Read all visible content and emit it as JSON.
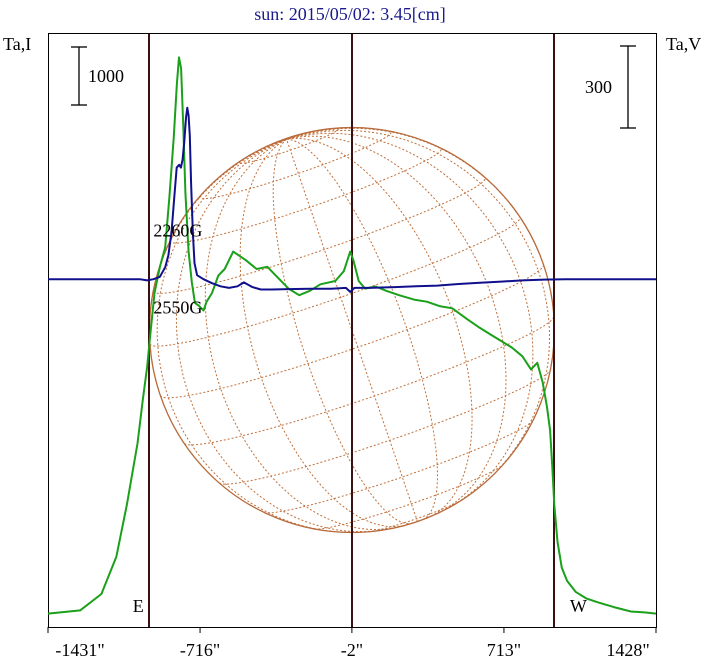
{
  "chart_data": {
    "type": "line",
    "title": "sun: 2015/05/02: 3.45[cm]",
    "left_axis_label": "Ta,I",
    "right_axis_label": "Ta,V",
    "left_scale_bar": {
      "label": "1000",
      "value": 1000
    },
    "right_scale_bar": {
      "label": "300",
      "value": 300
    },
    "x_ticks": [
      {
        "label": "-1431\"",
        "value": -1431
      },
      {
        "label": "-716\"",
        "value": -716
      },
      {
        "label": "-2\"",
        "value": -2
      },
      {
        "label": "713\"",
        "value": 713
      },
      {
        "label": "1428\"",
        "value": 1428
      }
    ],
    "xlim": [
      -1431,
      1428
    ],
    "limb_markers": [
      {
        "label": "E",
        "x": -950
      },
      {
        "label": "W",
        "x": 950
      }
    ],
    "center_x": -2,
    "annotations": [
      {
        "text": "2260G",
        "x": -820,
        "y": 1750
      },
      {
        "text": "2550G",
        "x": -820,
        "y": 1395
      }
    ],
    "series": [
      {
        "name": "I",
        "color": "#1aa01a",
        "ylim": [
          0,
          2650
        ],
        "points": [
          [
            -1431,
            20
          ],
          [
            -1280,
            35
          ],
          [
            -1180,
            110
          ],
          [
            -1110,
            280
          ],
          [
            -1060,
            520
          ],
          [
            -1010,
            800
          ],
          [
            -985,
            1000
          ],
          [
            -965,
            1150
          ],
          [
            -950,
            1300
          ],
          [
            -930,
            1490
          ],
          [
            -905,
            1610
          ],
          [
            -880,
            1700
          ],
          [
            -860,
            1930
          ],
          [
            -840,
            2200
          ],
          [
            -825,
            2450
          ],
          [
            -815,
            2570
          ],
          [
            -805,
            2520
          ],
          [
            -795,
            2250
          ],
          [
            -785,
            1950
          ],
          [
            -770,
            1680
          ],
          [
            -755,
            1540
          ],
          [
            -740,
            1445
          ],
          [
            -720,
            1430
          ],
          [
            -700,
            1410
          ],
          [
            -685,
            1450
          ],
          [
            -660,
            1490
          ],
          [
            -630,
            1570
          ],
          [
            -600,
            1600
          ],
          [
            -560,
            1680
          ],
          [
            -530,
            1660
          ],
          [
            -500,
            1640
          ],
          [
            -450,
            1600
          ],
          [
            -400,
            1610
          ],
          [
            -350,
            1560
          ],
          [
            -300,
            1510
          ],
          [
            -250,
            1480
          ],
          [
            -200,
            1500
          ],
          [
            -150,
            1530
          ],
          [
            -80,
            1545
          ],
          [
            -40,
            1590
          ],
          [
            -10,
            1680
          ],
          [
            5,
            1640
          ],
          [
            30,
            1545
          ],
          [
            60,
            1510
          ],
          [
            110,
            1520
          ],
          [
            160,
            1500
          ],
          [
            220,
            1480
          ],
          [
            290,
            1460
          ],
          [
            350,
            1450
          ],
          [
            410,
            1430
          ],
          [
            470,
            1420
          ],
          [
            540,
            1370
          ],
          [
            600,
            1330
          ],
          [
            650,
            1300
          ],
          [
            700,
            1270
          ],
          [
            750,
            1240
          ],
          [
            800,
            1200
          ],
          [
            840,
            1140
          ],
          [
            870,
            1170
          ],
          [
            895,
            1080
          ],
          [
            915,
            970
          ],
          [
            930,
            860
          ],
          [
            940,
            700
          ],
          [
            950,
            520
          ],
          [
            965,
            350
          ],
          [
            985,
            230
          ],
          [
            1010,
            170
          ],
          [
            1050,
            120
          ],
          [
            1100,
            90
          ],
          [
            1160,
            70
          ],
          [
            1230,
            50
          ],
          [
            1310,
            30
          ],
          [
            1380,
            25
          ],
          [
            1428,
            20
          ]
        ]
      },
      {
        "name": "V",
        "color": "#10108c",
        "ylim": [
          -850,
          600
        ],
        "points": [
          [
            -1431,
            0
          ],
          [
            -1200,
            0
          ],
          [
            -1000,
            0
          ],
          [
            -965,
            -3
          ],
          [
            -935,
            0
          ],
          [
            -905,
            6
          ],
          [
            -880,
            30
          ],
          [
            -865,
            60
          ],
          [
            -850,
            120
          ],
          [
            -838,
            200
          ],
          [
            -826,
            280
          ],
          [
            -814,
            287
          ],
          [
            -806,
            280
          ],
          [
            -798,
            300
          ],
          [
            -790,
            345
          ],
          [
            -782,
            405
          ],
          [
            -776,
            430
          ],
          [
            -770,
            410
          ],
          [
            -764,
            360
          ],
          [
            -758,
            240
          ],
          [
            -750,
            120
          ],
          [
            -742,
            40
          ],
          [
            -730,
            10
          ],
          [
            -700,
            0
          ],
          [
            -660,
            -10
          ],
          [
            -620,
            -18
          ],
          [
            -580,
            -22
          ],
          [
            -540,
            -18
          ],
          [
            -510,
            -8
          ],
          [
            -470,
            -20
          ],
          [
            -430,
            -26
          ],
          [
            -380,
            -26
          ],
          [
            -300,
            -25
          ],
          [
            -200,
            -24
          ],
          [
            -100,
            -24
          ],
          [
            -30,
            -22
          ],
          [
            -10,
            -32
          ],
          [
            10,
            -22
          ],
          [
            80,
            -22
          ],
          [
            200,
            -20
          ],
          [
            300,
            -18
          ],
          [
            400,
            -16
          ],
          [
            500,
            -12
          ],
          [
            600,
            -9
          ],
          [
            700,
            -6
          ],
          [
            800,
            -3
          ],
          [
            900,
            -1
          ],
          [
            1000,
            0
          ],
          [
            1200,
            0
          ],
          [
            1428,
            0
          ]
        ]
      }
    ]
  }
}
